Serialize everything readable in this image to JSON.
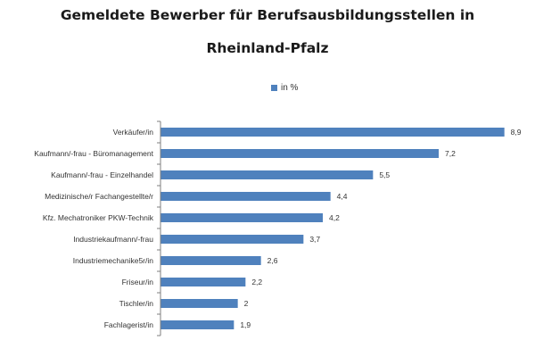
{
  "chart_data": {
    "type": "bar",
    "orientation": "horizontal",
    "title_line1": "Gemeldete Bewerber für Berufsausbildungsstellen in",
    "title_line2": "Rheinland-Pfalz",
    "legend": {
      "label": "in %",
      "position": "top",
      "color": "#4F81BD"
    },
    "categories": [
      "Verkäufer/in",
      "Kaufmann/-frau - Büromanagement",
      "Kaufmann/-frau - Einzelhandel",
      "Medizinische/r Fachangestellte/r",
      "Kfz. Mechatroniker PKW-Technik",
      "Industriekaufmann/-frau",
      "Industriemechanike5r/in",
      "Friseur/in",
      "Tischler/in",
      "Fachlagerist/in"
    ],
    "series": [
      {
        "name": "in %",
        "values": [
          8.9,
          7.2,
          5.5,
          4.4,
          4.2,
          3.7,
          2.6,
          2.2,
          2,
          1.9
        ]
      }
    ],
    "value_labels": [
      "8,9",
      "7,2",
      "5,5",
      "4,4",
      "4,2",
      "3,7",
      "2,6",
      "2,2",
      "2",
      "1,9"
    ],
    "xlim": [
      0,
      9
    ],
    "grid": false,
    "bar_color": "#4F81BD"
  }
}
